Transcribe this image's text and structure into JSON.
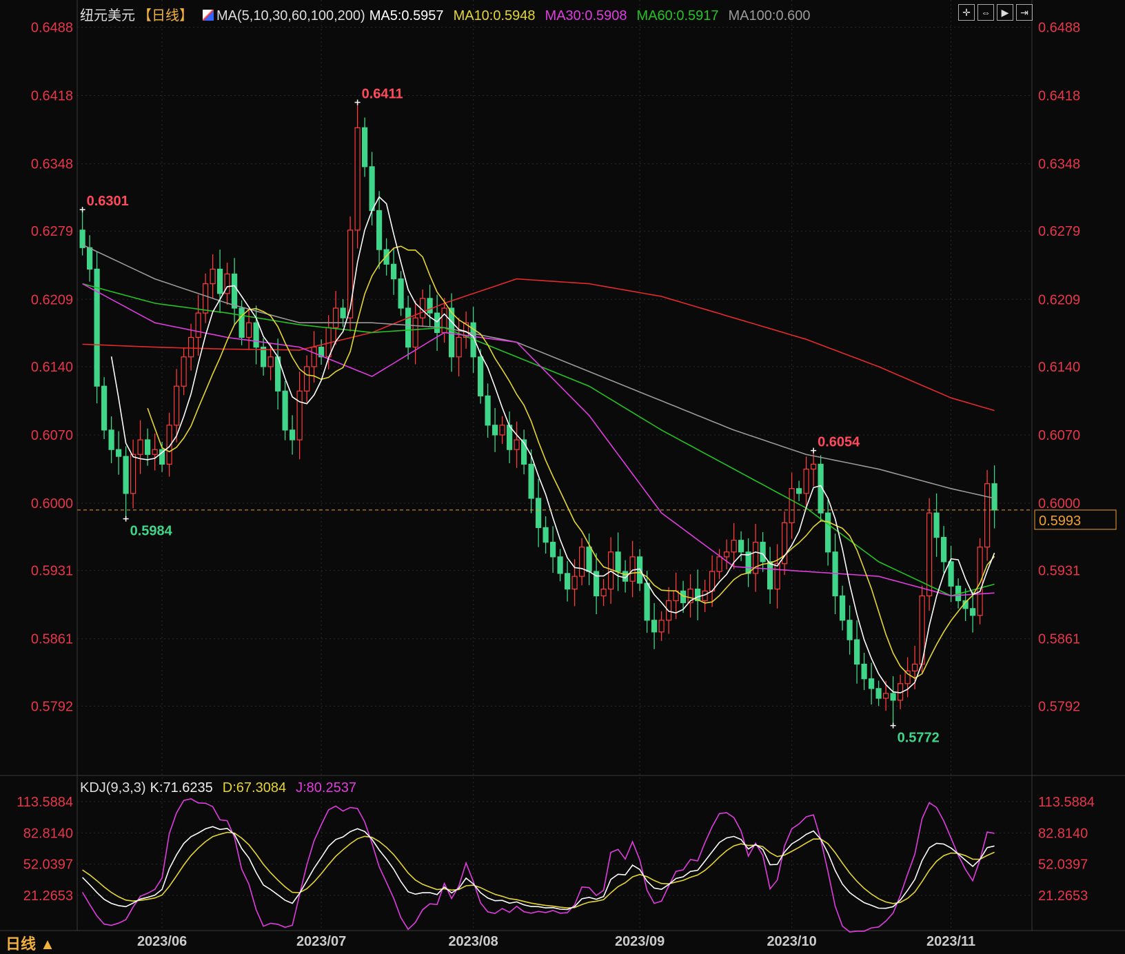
{
  "header": {
    "symbol": "纽元美元",
    "period_tag": "【日线】",
    "ma_label": "MA(5,10,30,60,100,200)",
    "ma_values": [
      {
        "text": "MA5:0.5957",
        "color": "#ffffff"
      },
      {
        "text": "MA10:0.5948",
        "color": "#e6d630"
      },
      {
        "text": "MA30:0.5908",
        "color": "#e03ce0"
      },
      {
        "text": "MA60:0.5917",
        "color": "#22c422"
      },
      {
        "text": "MA100:0.600",
        "color": "#9a9a9a"
      }
    ]
  },
  "toolbar": {
    "icons": [
      "crosshair-icon",
      "zoom-fit-icon",
      "play-icon",
      "move-right-icon"
    ]
  },
  "kdj_header": {
    "label": "KDJ(9,3,3)",
    "k": "K:71.6235",
    "d": "D:67.3084",
    "j": "J:80.2537"
  },
  "period_button": "日线 ▲",
  "colors": {
    "up": "#ff3b3b",
    "down": "#3fd68a",
    "axis_text": "#e8364a",
    "background": "#0a0a0a",
    "grid": "#2a2a2a",
    "current_price": "#f0a030"
  },
  "chart_data": {
    "type": "candlestick",
    "price_ticks": [
      "0.6488",
      "0.6418",
      "0.6348",
      "0.6279",
      "0.6209",
      "0.6140",
      "0.6070",
      "0.6000",
      "0.5931",
      "0.5861",
      "0.5792"
    ],
    "x_ticks": [
      "2023/06",
      "2023/07",
      "2023/08",
      "2023/09",
      "2023/10",
      "2023/11"
    ],
    "closes": [
      0.6262,
      0.624,
      0.612,
      0.6075,
      0.6055,
      0.6048,
      0.601,
      0.605,
      0.6065,
      0.605,
      0.6055,
      0.604,
      0.608,
      0.612,
      0.615,
      0.617,
      0.6195,
      0.6225,
      0.624,
      0.6215,
      0.6235,
      0.62,
      0.617,
      0.6185,
      0.616,
      0.614,
      0.615,
      0.6115,
      0.6075,
      0.6065,
      0.6115,
      0.614,
      0.616,
      0.615,
      0.618,
      0.62,
      0.619,
      0.628,
      0.6385,
      0.6345,
      0.63,
      0.626,
      0.6245,
      0.623,
      0.62,
      0.616,
      0.619,
      0.621,
      0.6195,
      0.6175,
      0.62,
      0.615,
      0.617,
      0.6185,
      0.615,
      0.611,
      0.608,
      0.607,
      0.608,
      0.6055,
      0.6065,
      0.604,
      0.6005,
      0.5975,
      0.596,
      0.5945,
      0.5928,
      0.5912,
      0.5925,
      0.5955,
      0.593,
      0.5905,
      0.5912,
      0.595,
      0.593,
      0.592,
      0.5945,
      0.5918,
      0.588,
      0.5868,
      0.588,
      0.59,
      0.591,
      0.5898,
      0.5912,
      0.59,
      0.591,
      0.593,
      0.5945,
      0.595,
      0.5962,
      0.595,
      0.5928,
      0.596,
      0.594,
      0.5912,
      0.5938,
      0.598,
      0.6015,
      0.601,
      0.6035,
      0.604,
      0.599,
      0.595,
      0.5905,
      0.588,
      0.586,
      0.5835,
      0.582,
      0.581,
      0.58,
      0.5805,
      0.5798,
      0.5815,
      0.5828,
      0.5835,
      0.5905,
      0.599,
      0.5965,
      0.594,
      0.5915,
      0.59,
      0.5892,
      0.5885,
      0.5955,
      0.602,
      0.5993
    ],
    "annotations": [
      {
        "text": "0.6301",
        "value": 0.6301,
        "kind": "high",
        "candle": 0
      },
      {
        "text": "0.5984",
        "value": 0.5984,
        "kind": "low",
        "candle": 6
      },
      {
        "text": "0.6411",
        "value": 0.6411,
        "kind": "high",
        "candle": 38
      },
      {
        "text": "0.6054",
        "value": 0.6054,
        "kind": "high",
        "candle": 101
      },
      {
        "text": "0.5772",
        "value": 0.5772,
        "kind": "low",
        "candle": 112
      }
    ],
    "current_price": "0.5993",
    "ma_long": {
      "ma30": [
        0.6225,
        0.6185,
        0.617,
        0.616,
        0.613,
        0.6175,
        0.6165,
        0.609,
        0.599,
        0.5935,
        0.593,
        0.5925,
        0.5905,
        0.5908
      ],
      "ma60": [
        0.6225,
        0.6205,
        0.6195,
        0.6183,
        0.6175,
        0.618,
        0.615,
        0.612,
        0.6075,
        0.6035,
        0.5995,
        0.594,
        0.5905,
        0.5917
      ],
      "ma100": [
        0.6265,
        0.623,
        0.6205,
        0.6185,
        0.6185,
        0.618,
        0.6165,
        0.6135,
        0.6105,
        0.6075,
        0.605,
        0.6035,
        0.6015,
        0.6005
      ],
      "ma200": [
        0.6163,
        0.616,
        0.6158,
        0.6157,
        0.6175,
        0.6205,
        0.623,
        0.6225,
        0.6212,
        0.619,
        0.6168,
        0.614,
        0.6108,
        0.6095
      ]
    },
    "kdj_ticks": [
      "113.5884",
      "82.8140",
      "52.0397",
      "21.2653"
    ]
  }
}
